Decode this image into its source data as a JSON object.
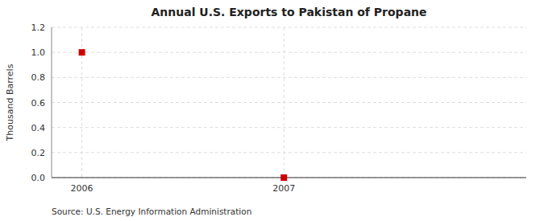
{
  "chart_data": {
    "type": "scatter",
    "title": "Annual U.S. Exports to Pakistan of Propane",
    "ylabel": "Thousand Barrels",
    "annotation": "Source: U.S. Energy Information Administration",
    "x": [
      2006,
      2007
    ],
    "values": [
      1.0,
      0.0
    ],
    "xlim": [
      2005.85,
      2008.2
    ],
    "ylim": [
      0.0,
      1.2
    ],
    "xticks": [
      2006,
      2007
    ],
    "yticks": [
      {
        "value": 0.0,
        "label": "0.0"
      },
      0.2,
      0.4,
      0.6,
      0.8,
      {
        "value": 1.0,
        "label": "1.0"
      },
      1.2
    ],
    "color": "#cc0000",
    "marker": "square",
    "grid": true
  }
}
